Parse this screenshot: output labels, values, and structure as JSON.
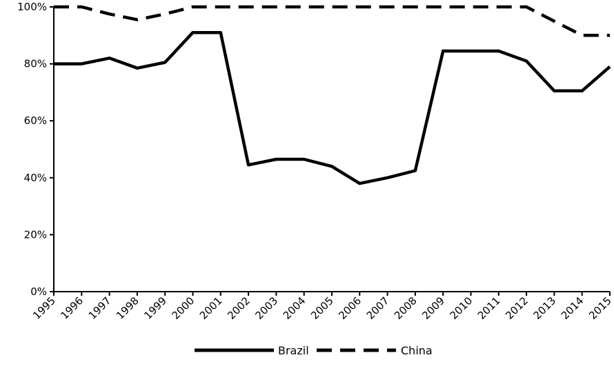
{
  "chart_data": {
    "type": "line",
    "title": "",
    "xlabel": "",
    "ylabel": "",
    "x": [
      "1995",
      "1996",
      "1997",
      "1998",
      "1999",
      "2000",
      "2001",
      "2002",
      "2003",
      "2004",
      "2005",
      "2006",
      "2007",
      "2008",
      "2009",
      "2010",
      "2011",
      "2012",
      "2013",
      "2014",
      "2015"
    ],
    "series": [
      {
        "name": "Brazil",
        "style": "solid",
        "color": "#000000",
        "values": [
          80,
          80,
          82,
          78.5,
          80.5,
          91,
          91,
          44.5,
          46.5,
          46.5,
          44,
          38,
          40,
          42.5,
          84.5,
          84.5,
          84.5,
          81,
          70.5,
          70.5,
          79
        ]
      },
      {
        "name": "China",
        "style": "dashed",
        "color": "#000000",
        "values": [
          100,
          100,
          97.5,
          95.5,
          97.5,
          100,
          100,
          100,
          100,
          100,
          100,
          100,
          100,
          100,
          100,
          100,
          100,
          100,
          95,
          90,
          90
        ]
      }
    ],
    "ylim": [
      0,
      100
    ],
    "yticks": [
      0,
      20,
      40,
      60,
      80,
      100
    ],
    "ytick_labels": [
      "0%",
      "20%",
      "40%",
      "60%",
      "80%",
      "100%"
    ],
    "grid": false,
    "legend_position": "bottom-center"
  }
}
